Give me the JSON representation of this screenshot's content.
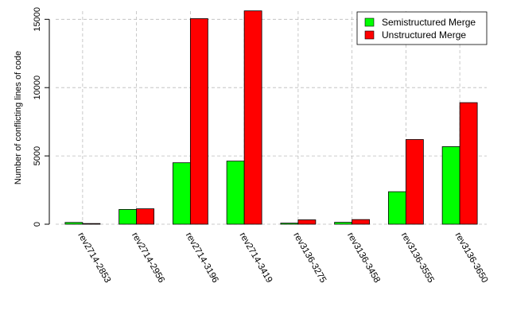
{
  "chart_data": {
    "type": "bar",
    "title": "",
    "xlabel": "",
    "ylabel": "Number of conflicting lines of code",
    "ylim": [
      0,
      15600
    ],
    "yticks": [
      0,
      5000,
      10000,
      15000
    ],
    "grid": true,
    "legend_position": "top-right",
    "categories": [
      "rev2714-2853",
      "rev2714-2956",
      "rev2714-3196",
      "rev2714-3419",
      "rev3136-3275",
      "rev3136-3458",
      "rev3136-3555",
      "rev3136-3650"
    ],
    "series": [
      {
        "name": "Semistructured Merge",
        "color": "#00ff00",
        "values": [
          130,
          1080,
          4500,
          4620,
          80,
          140,
          2380,
          5680
        ]
      },
      {
        "name": "Unstructured Merge",
        "color": "#ff0000",
        "values": [
          50,
          1130,
          15050,
          15620,
          320,
          340,
          6200,
          8900
        ]
      }
    ]
  }
}
